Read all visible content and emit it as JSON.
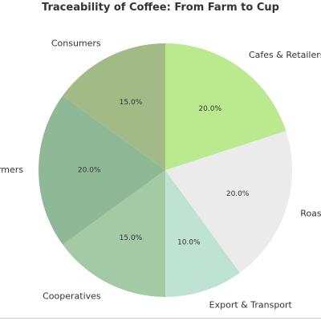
{
  "chart_data": {
    "type": "pie",
    "title": "Traceability of Coffee: From Farm to Cup",
    "categories": [
      "Farmers",
      "Cooperatives",
      "Export & Transport",
      "Roasters",
      "Cafes & Retailers",
      "Consumers"
    ],
    "values": [
      20.0,
      15.0,
      10.0,
      20.0,
      20.0,
      15.0
    ],
    "labels": [
      "20.0%",
      "15.0%",
      "10.0%",
      "20.0%",
      "20.0%",
      "15.0%"
    ],
    "colors": [
      "#8fb996",
      "#a4c9a5",
      "#bfe3d2",
      "#ebebeb",
      "#bbe98e",
      "#a2bb86"
    ],
    "start_angle_deg": 144,
    "direction": "counterclockwise"
  }
}
